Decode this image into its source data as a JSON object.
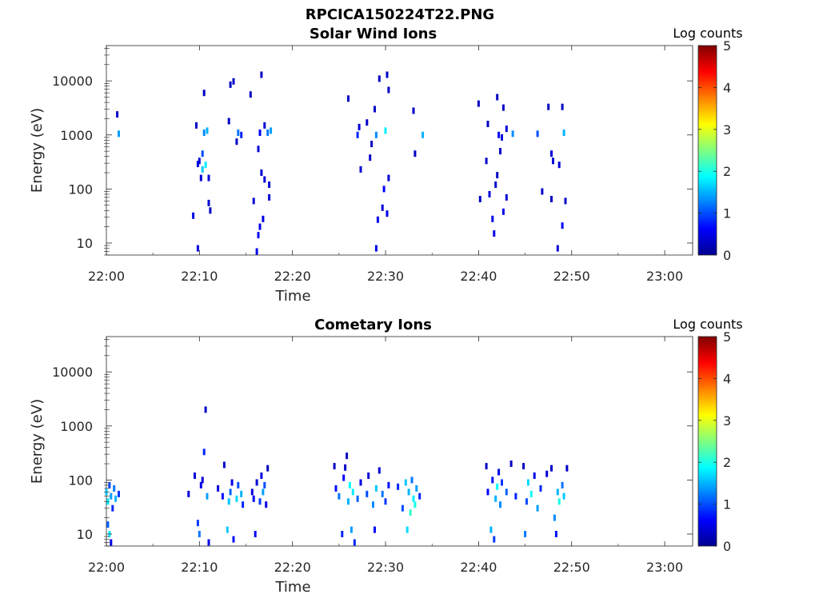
{
  "figure_title": "RPCICA150224T22.PNG",
  "colors": {
    "jet": [
      "#00008f",
      "#0000ff",
      "#0080ff",
      "#00ffff",
      "#80ff80",
      "#ffff00",
      "#ff8000",
      "#ff0000",
      "#800000"
    ],
    "axis": "#262626",
    "background": "#ffffff"
  },
  "chart_data": [
    {
      "type": "heatmap",
      "title": "Solar Wind Ions",
      "xlabel": "Time",
      "ylabel": "Energy (eV)",
      "x_ticks": [
        "22:00",
        "22:10",
        "22:20",
        "22:30",
        "22:40",
        "22:50",
        "23:00"
      ],
      "x_range": [
        "22:00",
        "23:03"
      ],
      "y_scale": "log",
      "y_ticks": [
        10,
        100,
        1000,
        10000
      ],
      "y_range": [
        6,
        45000
      ],
      "colorbar": {
        "label": "Log counts",
        "range": [
          0,
          5
        ],
        "ticks": [
          0,
          1,
          2,
          3,
          4,
          5
        ]
      },
      "points": [
        [
          "22:01:10",
          2400,
          0.3
        ],
        [
          "22:01:20",
          1050,
          1.4
        ],
        [
          "22:09:20",
          32,
          0.5
        ],
        [
          "22:09:40",
          1500,
          0.3
        ],
        [
          "22:09:50",
          8,
          0.5
        ],
        [
          "22:09:50",
          290,
          0.5
        ],
        [
          "22:10:00",
          330,
          0.4
        ],
        [
          "22:10:10",
          160,
          0.4
        ],
        [
          "22:10:20",
          230,
          1.6
        ],
        [
          "22:10:20",
          450,
          1.0
        ],
        [
          "22:10:30",
          1100,
          1.3
        ],
        [
          "22:10:30",
          6000,
          0.3
        ],
        [
          "22:10:40",
          280,
          1.8
        ],
        [
          "22:10:50",
          1200,
          1.5
        ],
        [
          "22:11:00",
          160,
          0.4
        ],
        [
          "22:11:00",
          55,
          0.4
        ],
        [
          "22:11:10",
          40,
          0.3
        ],
        [
          "22:13:10",
          1800,
          0.3
        ],
        [
          "22:13:20",
          8500,
          0.3
        ],
        [
          "22:13:40",
          9800,
          0.3
        ],
        [
          "22:14:00",
          750,
          0.3
        ],
        [
          "22:14:10",
          1100,
          1.2
        ],
        [
          "22:14:30",
          1000,
          0.8
        ],
        [
          "22:15:30",
          5600,
          0.3
        ],
        [
          "22:15:50",
          60,
          0.4
        ],
        [
          "22:16:10",
          7,
          0.5
        ],
        [
          "22:16:20",
          14,
          0.5
        ],
        [
          "22:16:30",
          20,
          0.5
        ],
        [
          "22:16:40",
          13000,
          0.3
        ],
        [
          "22:16:30",
          1100,
          0.6
        ],
        [
          "22:16:20",
          550,
          0.4
        ],
        [
          "22:16:40",
          200,
          0.4
        ],
        [
          "22:16:50",
          28,
          0.5
        ],
        [
          "22:17:00",
          150,
          0.4
        ],
        [
          "22:17:00",
          1500,
          0.4
        ],
        [
          "22:17:20",
          1100,
          1.2
        ],
        [
          "22:17:30",
          70,
          0.4
        ],
        [
          "22:17:30",
          120,
          0.4
        ],
        [
          "22:17:40",
          1200,
          1.4
        ],
        [
          "22:26:00",
          4700,
          0.3
        ],
        [
          "22:27:00",
          1000,
          0.8
        ],
        [
          "22:27:10",
          1400,
          0.4
        ],
        [
          "22:27:20",
          230,
          0.4
        ],
        [
          "22:28:00",
          1700,
          0.3
        ],
        [
          "22:28:20",
          380,
          0.3
        ],
        [
          "22:28:30",
          680,
          0.3
        ],
        [
          "22:28:50",
          3000,
          0.3
        ],
        [
          "22:29:00",
          8,
          0.5
        ],
        [
          "22:29:00",
          1000,
          1.3
        ],
        [
          "22:29:10",
          27,
          0.5
        ],
        [
          "22:29:20",
          11000,
          0.3
        ],
        [
          "22:29:40",
          45,
          0.4
        ],
        [
          "22:29:50",
          100,
          0.6
        ],
        [
          "22:30:00",
          1200,
          1.8
        ],
        [
          "22:30:10",
          13000,
          0.3
        ],
        [
          "22:30:10",
          35,
          0.5
        ],
        [
          "22:30:20",
          6800,
          0.3
        ],
        [
          "22:30:20",
          160,
          0.4
        ],
        [
          "22:33:00",
          2800,
          0.3
        ],
        [
          "22:33:10",
          450,
          0.3
        ],
        [
          "22:34:00",
          1000,
          1.5
        ],
        [
          "22:40:00",
          3800,
          0.3
        ],
        [
          "22:40:10",
          65,
          0.3
        ],
        [
          "22:40:50",
          330,
          0.3
        ],
        [
          "22:41:00",
          1600,
          0.3
        ],
        [
          "22:41:10",
          80,
          0.4
        ],
        [
          "22:41:30",
          28,
          0.5
        ],
        [
          "22:41:40",
          15,
          0.5
        ],
        [
          "22:41:50",
          120,
          0.3
        ],
        [
          "22:42:00",
          5000,
          0.3
        ],
        [
          "22:42:00",
          180,
          0.3
        ],
        [
          "22:42:10",
          1000,
          0.6
        ],
        [
          "22:42:20",
          500,
          0.3
        ],
        [
          "22:42:30",
          900,
          0.4
        ],
        [
          "22:42:40",
          38,
          0.5
        ],
        [
          "22:42:40",
          3200,
          0.3
        ],
        [
          "22:43:00",
          1300,
          0.4
        ],
        [
          "22:43:00",
          70,
          0.4
        ],
        [
          "22:43:40",
          1050,
          1.3
        ],
        [
          "22:46:20",
          1050,
          1.0
        ],
        [
          "22:46:50",
          90,
          0.3
        ],
        [
          "22:47:30",
          3300,
          0.3
        ],
        [
          "22:47:50",
          65,
          0.3
        ],
        [
          "22:47:50",
          450,
          0.4
        ],
        [
          "22:48:00",
          330,
          0.4
        ],
        [
          "22:48:30",
          8,
          0.4
        ],
        [
          "22:48:40",
          280,
          0.4
        ],
        [
          "22:49:00",
          21,
          0.6
        ],
        [
          "22:49:00",
          3300,
          0.3
        ],
        [
          "22:49:10",
          1100,
          1.5
        ],
        [
          "22:49:20",
          60,
          0.3
        ]
      ]
    },
    {
      "type": "heatmap",
      "title": "Cometary Ions",
      "xlabel": "Time",
      "ylabel": "Energy (eV)",
      "x_ticks": [
        "22:00",
        "22:10",
        "22:20",
        "22:30",
        "22:40",
        "22:50",
        "23:00"
      ],
      "x_range": [
        "22:00",
        "23:03"
      ],
      "y_scale": "log",
      "y_ticks": [
        10,
        100,
        1000,
        10000
      ],
      "y_range": [
        6,
        45000
      ],
      "colorbar": {
        "label": "Log counts",
        "range": [
          0,
          5
        ],
        "ticks": [
          0,
          1,
          2,
          3,
          4,
          5
        ]
      },
      "points": [
        [
          "22:00:00",
          60,
          1.6
        ],
        [
          "22:00:10",
          40,
          1.8
        ],
        [
          "22:00:20",
          80,
          1.0
        ],
        [
          "22:00:30",
          50,
          1.4
        ],
        [
          "22:00:40",
          30,
          0.8
        ],
        [
          "22:00:50",
          70,
          1.2
        ],
        [
          "22:01:00",
          45,
          1.5
        ],
        [
          "22:01:20",
          55,
          0.9
        ],
        [
          "22:00:10",
          15,
          1.1
        ],
        [
          "22:00:20",
          10,
          1.8
        ],
        [
          "22:00:30",
          7,
          0.5
        ],
        [
          "22:08:50",
          55,
          0.4
        ],
        [
          "22:09:30",
          120,
          0.4
        ],
        [
          "22:09:50",
          16,
          0.9
        ],
        [
          "22:10:00",
          10,
          1.2
        ],
        [
          "22:10:10",
          80,
          0.5
        ],
        [
          "22:10:20",
          100,
          0.4
        ],
        [
          "22:10:30",
          330,
          0.8
        ],
        [
          "22:10:40",
          2000,
          0.3
        ],
        [
          "22:10:50",
          50,
          1.4
        ],
        [
          "22:11:00",
          7,
          0.5
        ],
        [
          "22:12:00",
          70,
          0.4
        ],
        [
          "22:12:30",
          50,
          0.7
        ],
        [
          "22:12:40",
          190,
          0.3
        ],
        [
          "22:13:00",
          12,
          1.6
        ],
        [
          "22:13:10",
          40,
          1.6
        ],
        [
          "22:13:20",
          60,
          1.1
        ],
        [
          "22:13:30",
          90,
          0.5
        ],
        [
          "22:13:40",
          8,
          0.7
        ],
        [
          "22:14:00",
          45,
          1.7
        ],
        [
          "22:14:10",
          80,
          1.0
        ],
        [
          "22:14:30",
          55,
          1.5
        ],
        [
          "22:14:40",
          35,
          0.8
        ],
        [
          "22:15:40",
          60,
          0.4
        ],
        [
          "22:15:50",
          45,
          0.6
        ],
        [
          "22:16:00",
          10,
          0.6
        ],
        [
          "22:16:10",
          90,
          0.4
        ],
        [
          "22:16:30",
          40,
          0.9
        ],
        [
          "22:16:40",
          120,
          0.5
        ],
        [
          "22:16:50",
          60,
          1.4
        ],
        [
          "22:17:00",
          80,
          1.0
        ],
        [
          "22:17:10",
          35,
          0.5
        ],
        [
          "22:17:20",
          165,
          0.3
        ],
        [
          "22:24:30",
          180,
          0.3
        ],
        [
          "22:24:40",
          70,
          0.7
        ],
        [
          "22:25:00",
          50,
          1.2
        ],
        [
          "22:25:20",
          10,
          0.8
        ],
        [
          "22:25:30",
          110,
          0.6
        ],
        [
          "22:25:40",
          170,
          0.3
        ],
        [
          "22:25:50",
          280,
          0.3
        ],
        [
          "22:26:00",
          40,
          1.5
        ],
        [
          "22:26:10",
          80,
          1.9
        ],
        [
          "22:26:20",
          12,
          1.4
        ],
        [
          "22:26:30",
          60,
          1.8
        ],
        [
          "22:26:40",
          7,
          0.8
        ],
        [
          "22:27:00",
          45,
          1.1
        ],
        [
          "22:27:20",
          90,
          0.5
        ],
        [
          "22:28:00",
          55,
          1.0
        ],
        [
          "22:28:10",
          120,
          0.4
        ],
        [
          "22:28:40",
          35,
          1.3
        ],
        [
          "22:28:50",
          12,
          0.6
        ],
        [
          "22:29:00",
          70,
          1.6
        ],
        [
          "22:29:20",
          150,
          0.4
        ],
        [
          "22:29:40",
          55,
          1.2
        ],
        [
          "22:30:00",
          40,
          0.9
        ],
        [
          "22:30:20",
          80,
          0.7
        ],
        [
          "22:31:20",
          75,
          0.8
        ],
        [
          "22:31:50",
          30,
          1.0
        ],
        [
          "22:32:10",
          90,
          1.6
        ],
        [
          "22:32:20",
          12,
          1.7
        ],
        [
          "22:32:30",
          60,
          1.5
        ],
        [
          "22:32:40",
          25,
          2.1
        ],
        [
          "22:32:50",
          100,
          1.2
        ],
        [
          "22:33:00",
          45,
          1.8
        ],
        [
          "22:33:10",
          35,
          2.0
        ],
        [
          "22:33:20",
          70,
          1.4
        ],
        [
          "22:33:40",
          50,
          0.8
        ],
        [
          "22:40:50",
          180,
          0.3
        ],
        [
          "22:41:00",
          60,
          0.6
        ],
        [
          "22:41:20",
          12,
          1.5
        ],
        [
          "22:41:30",
          100,
          0.7
        ],
        [
          "22:41:40",
          8,
          0.9
        ],
        [
          "22:41:50",
          45,
          1.5
        ],
        [
          "22:42:00",
          75,
          1.9
        ],
        [
          "22:42:10",
          140,
          0.5
        ],
        [
          "22:42:20",
          35,
          1.3
        ],
        [
          "22:42:30",
          90,
          0.9
        ],
        [
          "22:43:00",
          60,
          1.1
        ],
        [
          "22:43:30",
          200,
          0.3
        ],
        [
          "22:44:00",
          50,
          0.8
        ],
        [
          "22:44:50",
          180,
          0.3
        ],
        [
          "22:45:00",
          10,
          1.2
        ],
        [
          "22:45:10",
          40,
          1.0
        ],
        [
          "22:45:20",
          90,
          1.7
        ],
        [
          "22:45:40",
          55,
          1.9
        ],
        [
          "22:46:00",
          120,
          0.5
        ],
        [
          "22:46:20",
          30,
          1.4
        ],
        [
          "22:46:40",
          70,
          0.8
        ],
        [
          "22:47:20",
          130,
          0.4
        ],
        [
          "22:47:50",
          165,
          0.3
        ],
        [
          "22:48:10",
          20,
          1.3
        ],
        [
          "22:48:20",
          10,
          0.7
        ],
        [
          "22:48:30",
          60,
          1.5
        ],
        [
          "22:48:40",
          40,
          2.0
        ],
        [
          "22:49:00",
          80,
          1.2
        ],
        [
          "22:49:10",
          50,
          1.6
        ],
        [
          "22:49:30",
          165,
          0.3
        ]
      ]
    }
  ]
}
